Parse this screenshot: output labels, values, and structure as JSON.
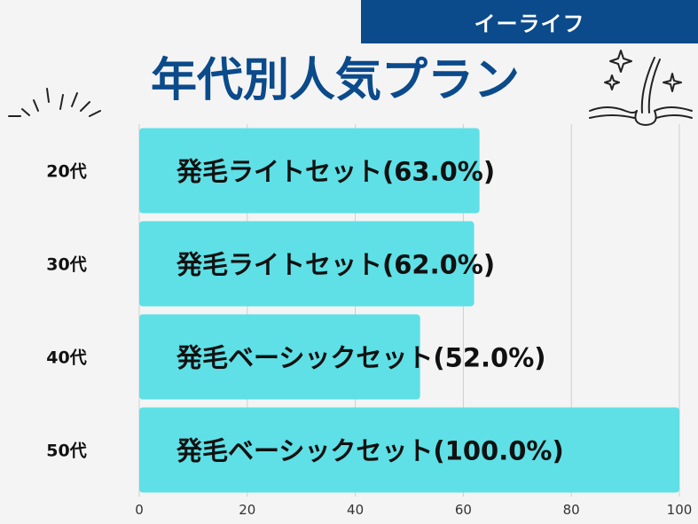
{
  "brand": {
    "name": "イーライフ"
  },
  "colors": {
    "brand": "#0b4a8b",
    "bar": "#5ee0e6",
    "background": "#f4f4f4",
    "grid": "#cfcfcf"
  },
  "decorations": {
    "left": "sparkle-rays-icon",
    "right": "hair-follicle-icon"
  },
  "chart_data": {
    "type": "bar",
    "orientation": "horizontal",
    "title": "年代別人気プラン",
    "categories": [
      "20代",
      "30代",
      "40代",
      "50代"
    ],
    "values": [
      63.0,
      62.0,
      52.0,
      100.0
    ],
    "bar_labels": [
      "発毛ライトセット(63.0%)",
      "発毛ライトセット(62.0%)",
      "発毛ベーシックセット(52.0%)",
      "発毛ベーシックセット(100.0%)"
    ],
    "xlim": [
      0,
      100
    ],
    "xticks": [
      0,
      20,
      40,
      60,
      80,
      100
    ],
    "grid": true,
    "legend": "none"
  }
}
